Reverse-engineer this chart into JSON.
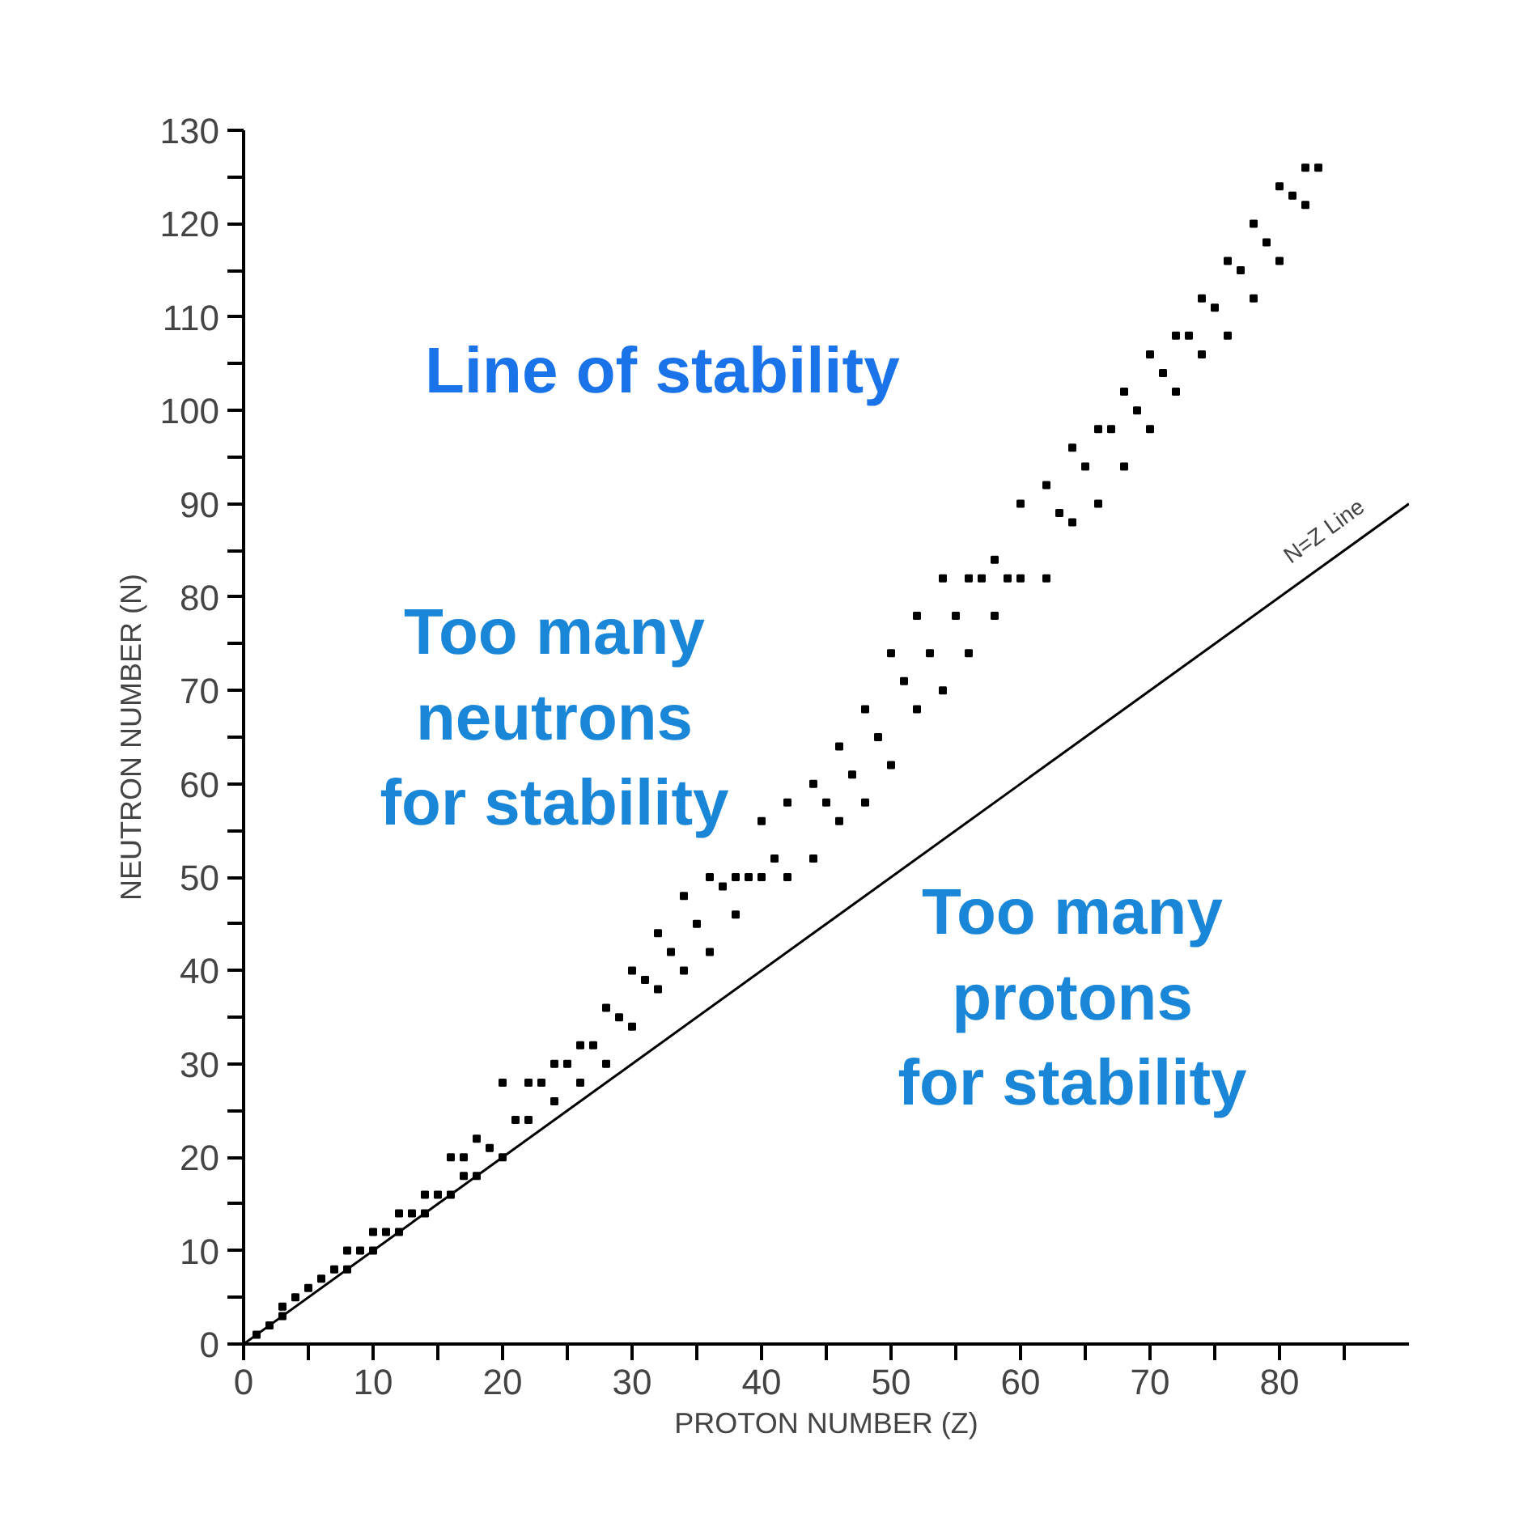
{
  "chart_data": {
    "type": "scatter",
    "xlabel": "PROTON NUMBER (Z)",
    "ylabel": "NEUTRON NUMBER (N)",
    "xlim": [
      0,
      90
    ],
    "ylim": [
      0,
      130
    ],
    "xticks": [
      0,
      {
        "value": 5,
        "label": null
      },
      10,
      {
        "value": 15,
        "label": null
      },
      20,
      {
        "value": 25,
        "label": null
      },
      30,
      {
        "value": 35,
        "label": null
      },
      40,
      {
        "value": 45,
        "label": null
      },
      50,
      {
        "value": 55,
        "label": null
      },
      60,
      {
        "value": 65,
        "label": null
      },
      70,
      {
        "value": 75,
        "label": null
      },
      80,
      {
        "value": 85,
        "label": null
      }
    ],
    "yticks": [
      0,
      {
        "value": 5,
        "label": null
      },
      10,
      {
        "value": 15,
        "label": null
      },
      20,
      {
        "value": 25,
        "label": null
      },
      30,
      {
        "value": 35,
        "label": null
      },
      40,
      {
        "value": 45,
        "label": null
      },
      50,
      {
        "value": 55,
        "label": null
      },
      60,
      {
        "value": 65,
        "label": null
      },
      70,
      {
        "value": 75,
        "label": null
      },
      80,
      {
        "value": 85,
        "label": null
      },
      90,
      {
        "value": 95,
        "label": null
      },
      100,
      {
        "value": 105,
        "label": null
      },
      110,
      {
        "value": 115,
        "label": null
      },
      120,
      {
        "value": 125,
        "label": null
      },
      130
    ],
    "grid": false,
    "marker": "square",
    "series": [
      {
        "color": "#000000",
        "x": [
          1,
          2,
          3,
          3,
          4,
          5,
          6,
          7,
          8,
          8,
          9,
          10,
          10,
          11,
          12,
          12,
          13,
          14,
          14,
          15,
          16,
          16,
          17,
          17,
          18,
          18,
          19,
          20,
          20,
          21,
          22,
          22,
          23,
          24,
          24,
          25,
          26,
          26,
          27,
          28,
          28,
          29,
          30,
          30,
          31,
          32,
          32,
          33,
          34,
          34,
          35,
          36,
          36,
          37,
          38,
          38,
          39,
          40,
          40,
          41,
          42,
          42,
          44,
          44,
          45,
          46,
          46,
          47,
          48,
          48,
          49,
          50,
          50,
          51,
          52,
          52,
          53,
          54,
          54,
          55,
          56,
          56,
          57,
          58,
          58,
          59,
          60,
          60,
          62,
          62,
          63,
          64,
          64,
          65,
          66,
          66,
          67,
          68,
          68,
          69,
          70,
          70,
          71,
          72,
          72,
          73,
          74,
          74,
          75,
          76,
          76,
          77,
          78,
          78,
          79,
          80,
          80,
          81,
          82,
          82,
          83
        ],
        "values": [
          1,
          2,
          3,
          4,
          5,
          6,
          7,
          8,
          8,
          10,
          10,
          10,
          12,
          12,
          12,
          14,
          14,
          14,
          16,
          16,
          16,
          20,
          18,
          20,
          18,
          22,
          21,
          20,
          28,
          24,
          24,
          28,
          28,
          26,
          30,
          30,
          28,
          32,
          32,
          30,
          36,
          35,
          34,
          40,
          39,
          38,
          44,
          42,
          40,
          48,
          45,
          42,
          50,
          49,
          46,
          50,
          50,
          50,
          56,
          52,
          50,
          58,
          52,
          60,
          58,
          56,
          64,
          61,
          58,
          68,
          65,
          62,
          74,
          71,
          68,
          78,
          74,
          70,
          82,
          78,
          74,
          82,
          82,
          78,
          84,
          82,
          82,
          90,
          82,
          92,
          89,
          88,
          96,
          94,
          90,
          98,
          98,
          94,
          102,
          100,
          98,
          106,
          104,
          102,
          108,
          108,
          106,
          112,
          111,
          108,
          116,
          115,
          112,
          120,
          118,
          116,
          124,
          123,
          122,
          126,
          126
        ]
      },
      {
        "type": "line",
        "color": "#000000",
        "marker": "none",
        "x": [
          0,
          90
        ],
        "values": [
          0,
          90
        ]
      }
    ],
    "annotations": [
      "N=Z Line",
      "Line of stability",
      "Too many\nneutrons\nfor stability",
      "Too many\nprotons\nfor stability"
    ]
  }
}
